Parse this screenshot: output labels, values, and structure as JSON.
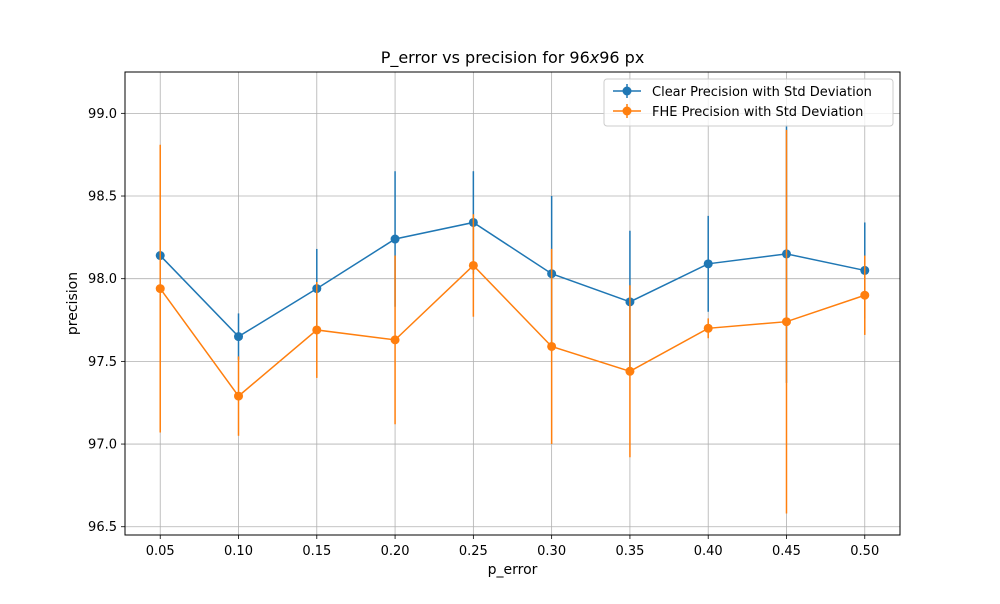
{
  "chart_data": {
    "type": "line",
    "title": "P_error vs precision for 96x96 px",
    "title_parts": {
      "prefix": "P_error vs precision for 96",
      "italic_x": "x",
      "suffix": "96 px"
    },
    "xlabel": "p_error",
    "ylabel": "precision",
    "x": [
      0.05,
      0.1,
      0.15,
      0.2,
      0.25,
      0.3,
      0.35,
      0.4,
      0.45,
      0.5
    ],
    "x_tick_labels": [
      "0.05",
      "0.10",
      "0.15",
      "0.20",
      "0.25",
      "0.30",
      "0.35",
      "0.40",
      "0.45",
      "0.50"
    ],
    "y_ticks": [
      96.5,
      97.0,
      97.5,
      98.0,
      98.5,
      99.0
    ],
    "y_tick_labels": [
      "96.5",
      "97.0",
      "97.5",
      "98.0",
      "98.5",
      "99.0"
    ],
    "ylim": [
      96.45,
      99.25
    ],
    "xlim": [
      0.0275,
      0.5225
    ],
    "grid": true,
    "legend_position": "top-right",
    "series": [
      {
        "name": "Clear Precision with Std Deviation",
        "color": "#1f77b4",
        "values": [
          98.14,
          97.65,
          97.94,
          98.24,
          98.34,
          98.03,
          97.86,
          98.09,
          98.15,
          98.05
        ],
        "err": [
          0.0,
          0.14,
          0.24,
          0.41,
          0.31,
          0.47,
          0.43,
          0.29,
          0.78,
          0.29
        ]
      },
      {
        "name": "FHE Precision with Std Deviation",
        "color": "#ff7f0e",
        "values": [
          97.94,
          97.29,
          97.69,
          97.63,
          98.08,
          97.59,
          97.44,
          97.7,
          97.74,
          97.9
        ],
        "err": [
          0.87,
          0.24,
          0.29,
          0.51,
          0.31,
          0.59,
          0.52,
          0.06,
          1.16,
          0.24
        ]
      }
    ]
  }
}
